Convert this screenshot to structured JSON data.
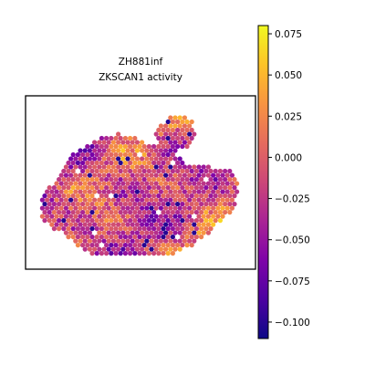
{
  "chart_data": {
    "type": "heatmap",
    "subtype": "spatial hexbin scatter",
    "title": [
      "ZH881inf",
      "ZKSCAN1 activity"
    ],
    "xlabel": "",
    "ylabel": "",
    "colormap": "plasma",
    "colorbar": {
      "range": [
        -0.11,
        0.08
      ],
      "ticks": [
        0.075,
        0.05,
        0.025,
        0.0,
        -0.025,
        -0.05,
        -0.075,
        -0.1
      ],
      "tick_labels": [
        "0.075",
        "0.050",
        "0.025",
        "0.000",
        "−0.025",
        "−0.050",
        "−0.075",
        "−0.100"
      ]
    },
    "legend": "none",
    "grid": false
  }
}
